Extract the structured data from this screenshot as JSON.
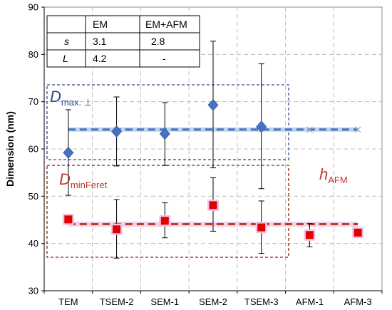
{
  "chart_data": {
    "type": "scatter",
    "xlabel": "",
    "ylabel": "Dimension (nm)",
    "ylim": [
      30,
      90
    ],
    "yticks": [
      30,
      40,
      50,
      60,
      70,
      80,
      90
    ],
    "categories": [
      "TEM",
      "TSEM-2",
      "SEM-1",
      "SEM-2",
      "TSEM-3",
      "AFM-1",
      "AFM-3"
    ],
    "grid": true,
    "series": [
      {
        "marker": "diamond",
        "color": "#4472c4",
        "values": [
          59.2,
          63.7,
          63.2,
          69.3,
          64.7,
          null,
          null
        ],
        "err_low": [
          50.2,
          56.4,
          56.5,
          56.0,
          51.6,
          null,
          null
        ],
        "err_high": [
          68.3,
          71.0,
          69.8,
          82.8,
          78.0,
          null,
          null
        ]
      },
      {
        "marker": "square",
        "color": "#e00000",
        "values": [
          45.1,
          43.0,
          44.8,
          48.1,
          43.4,
          41.8,
          42.3
        ],
        "err_low": [
          44.2,
          36.9,
          41.2,
          42.6,
          37.9,
          39.3,
          41.3
        ],
        "err_high": [
          46.2,
          49.3,
          48.6,
          53.9,
          49.0,
          44.2,
          43.3
        ]
      }
    ],
    "reference_lines": [
      {
        "color": "#4472c4",
        "y": 64.1
      },
      {
        "color": "#c0392b",
        "y": 44.1
      }
    ],
    "annotations": {
      "dmax": {
        "main": "D",
        "sub": "max. ⊥"
      },
      "dmin": {
        "main": "D",
        "sub": "minFeret"
      },
      "hafm": {
        "main": "h",
        "sub": "AFM"
      }
    },
    "table": {
      "header": [
        "",
        "EM",
        "EM+AFM"
      ],
      "rows": [
        [
          "s",
          "3.1",
          "2.8"
        ],
        [
          "L",
          "4.2",
          "-"
        ]
      ]
    }
  }
}
